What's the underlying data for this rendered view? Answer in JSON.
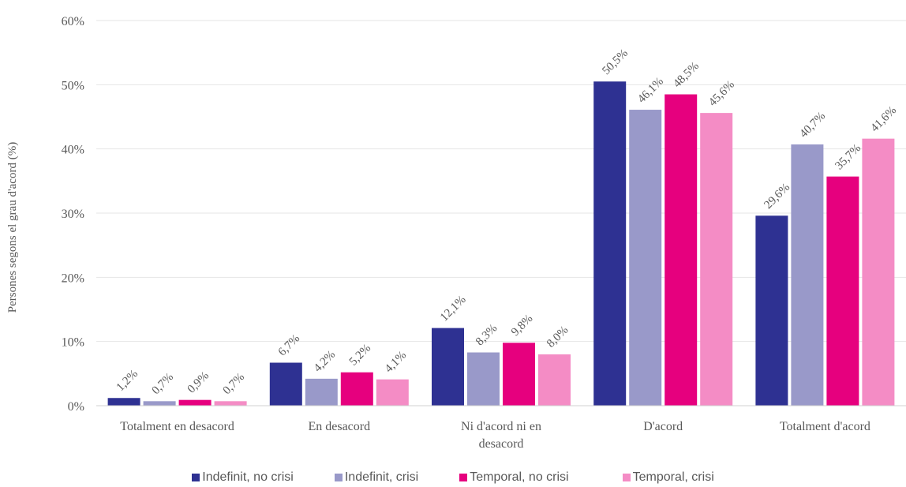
{
  "chart_data": {
    "type": "bar",
    "ylabel": "Persones segons el grau d'acord (%)",
    "xlabel": "",
    "ylim": [
      0,
      60
    ],
    "yticks": [
      0,
      10,
      20,
      30,
      40,
      50,
      60
    ],
    "ytick_labels": [
      "0%",
      "10%",
      "20%",
      "30%",
      "40%",
      "50%",
      "60%"
    ],
    "grid": true,
    "legend_position": "bottom",
    "categories": [
      [
        "Totalment en desacord"
      ],
      [
        "En desacord"
      ],
      [
        "Ni d'acord ni en",
        "desacord"
      ],
      [
        "D'acord"
      ],
      [
        "Totalment d'acord"
      ]
    ],
    "series": [
      {
        "name": "Indefinit, no crisi",
        "color": "#2e3192",
        "values": [
          1.2,
          6.7,
          12.1,
          50.5,
          29.6
        ],
        "labels": [
          "1,2%",
          "6,7%",
          "12,1%",
          "50,5%",
          "29,6%"
        ]
      },
      {
        "name": "Indefinit, crisi",
        "color": "#9999c9",
        "values": [
          0.7,
          4.2,
          8.3,
          46.1,
          40.7
        ],
        "labels": [
          "0,7%",
          "4,2%",
          "8,3%",
          "46,1%",
          "40,7%"
        ]
      },
      {
        "name": "Temporal, no crisi",
        "color": "#e6007e",
        "values": [
          0.9,
          5.2,
          9.8,
          48.5,
          35.7
        ],
        "labels": [
          "0,9%",
          "5,2%",
          "9,8%",
          "48,5%",
          "35,7%"
        ]
      },
      {
        "name": "Temporal, crisi",
        "color": "#f48cc5",
        "values": [
          0.7,
          4.1,
          8.0,
          45.6,
          41.6
        ],
        "labels": [
          "0,7%",
          "4,1%",
          "8,0%",
          "45,6%",
          "41,6%"
        ]
      }
    ]
  }
}
